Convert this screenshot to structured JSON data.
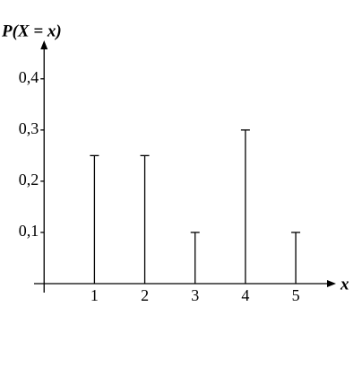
{
  "chart_data": {
    "type": "stem",
    "y_label": "P(X = x)",
    "x_label": "x",
    "x": [
      1,
      2,
      3,
      4,
      5
    ],
    "values": [
      0.25,
      0.25,
      0.1,
      0.3,
      0.1
    ],
    "color": "#000000",
    "xlim": [
      -0.2,
      5.8
    ],
    "ylim": [
      0,
      0.475
    ],
    "xticks": [
      1,
      2,
      3,
      4,
      5
    ],
    "yticks": [
      {
        "value": 0.1,
        "label": "0,1"
      },
      {
        "value": 0.2,
        "label": "0,2"
      },
      {
        "value": 0.3,
        "label": "0,3"
      },
      {
        "value": 0.4,
        "label": "0,4"
      }
    ]
  }
}
